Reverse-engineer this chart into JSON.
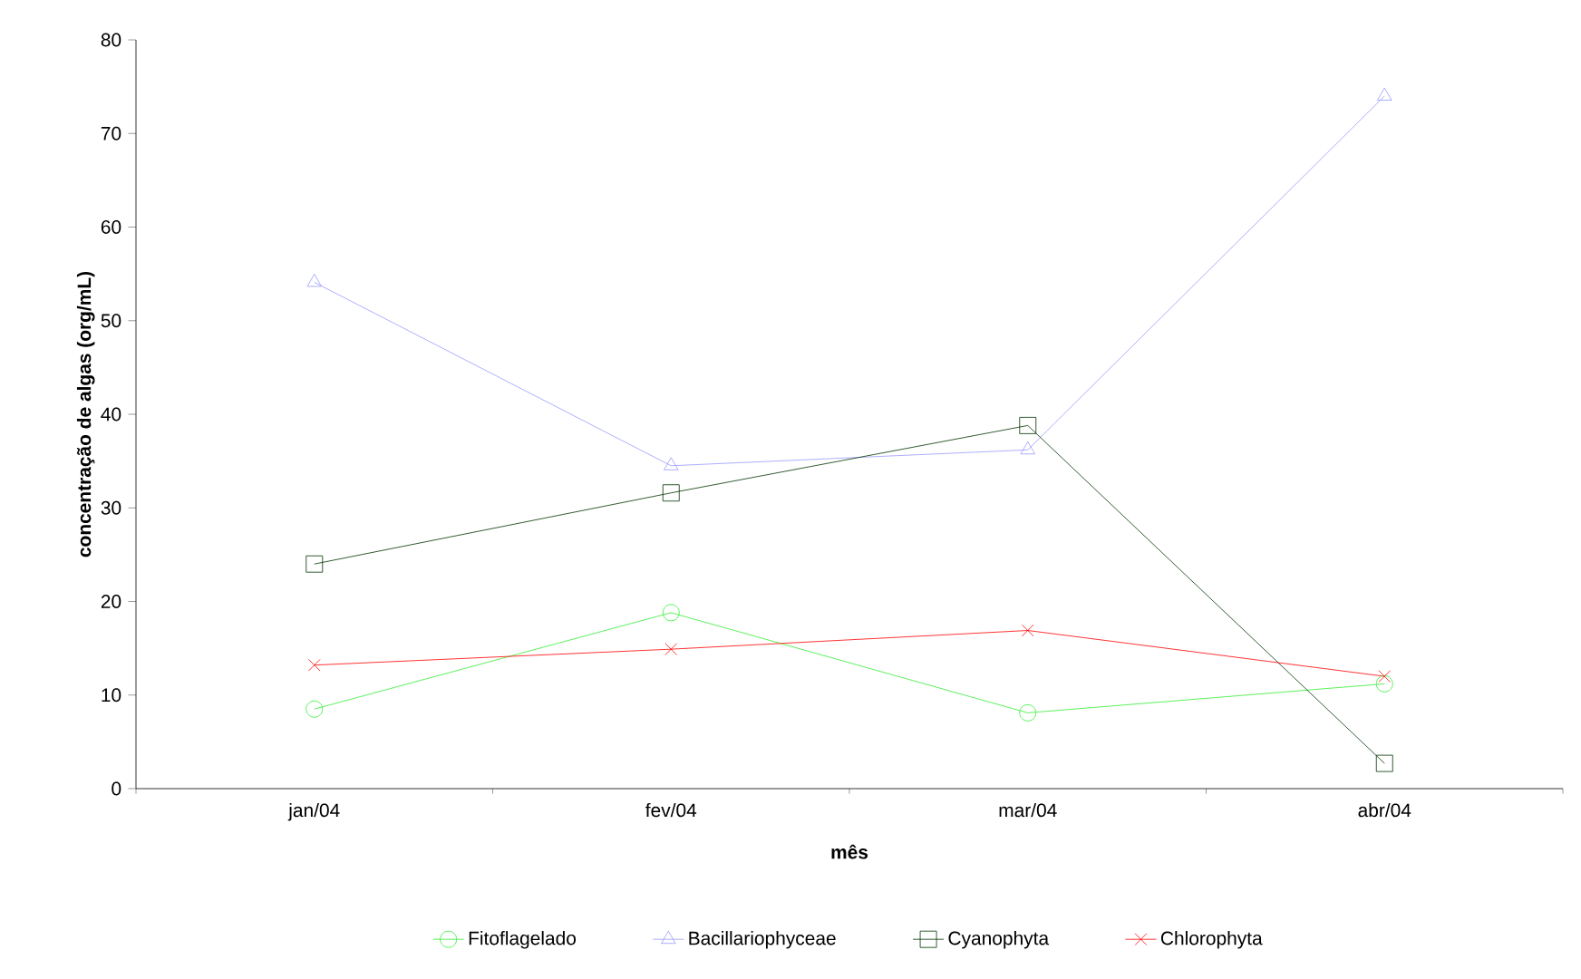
{
  "chart_data": {
    "type": "line",
    "xlabel": "mês",
    "ylabel": "concentração de algas (org/mL)",
    "categories": [
      "jan/04",
      "fev/04",
      "mar/04",
      "abr/04"
    ],
    "ylim": [
      0,
      80
    ],
    "yticks": [
      0,
      10,
      20,
      30,
      40,
      50,
      60,
      70,
      80
    ],
    "grid": false,
    "legend": "bottom",
    "series": [
      {
        "name": "Fitoflagelado",
        "color": "#33ee33",
        "marker": "circle",
        "values": [
          8.5,
          18.8,
          8.1,
          11.2
        ]
      },
      {
        "name": "Bacillariophyceae",
        "color": "#9999ff",
        "marker": "triangle",
        "values": [
          54.1,
          34.5,
          36.2,
          74.0
        ]
      },
      {
        "name": "Cyanophyta",
        "color": "#003300",
        "marker": "square",
        "values": [
          24.0,
          31.6,
          38.8,
          2.7
        ]
      },
      {
        "name": "Chlorophyta",
        "color": "#ff0000",
        "marker": "cross",
        "values": [
          13.2,
          14.9,
          16.9,
          12.0
        ]
      }
    ]
  }
}
